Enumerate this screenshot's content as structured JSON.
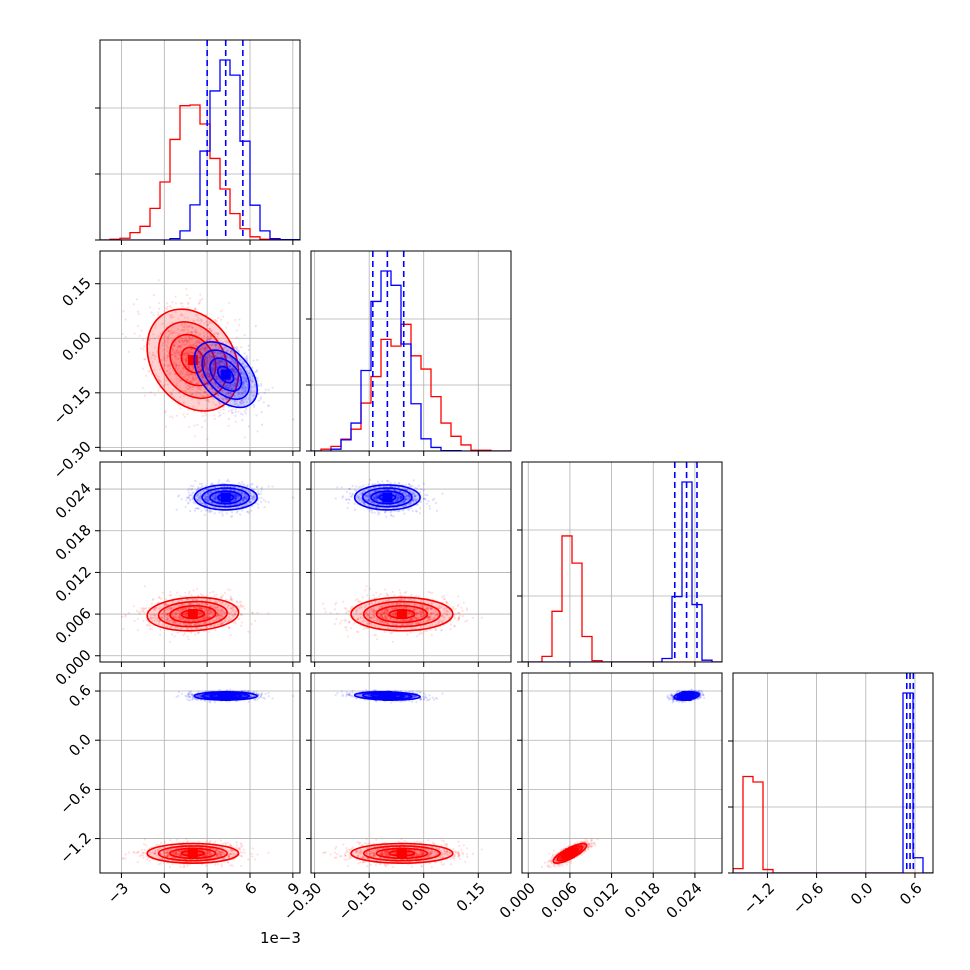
{
  "chart_data": {
    "type": "scatter",
    "subtype": "corner",
    "colors": {
      "series_a": "#ff0000",
      "series_b": "#0000ff",
      "grid": "#b0b0b0"
    },
    "parameters": [
      {
        "range": [
          -4.5,
          9.5
        ],
        "ticks": [
          -3,
          0,
          3,
          6,
          9
        ],
        "tick_labels": [
          "−3",
          "0",
          "3",
          "6",
          "9"
        ],
        "offset_label": "1e−3"
      },
      {
        "range": [
          -0.31,
          0.24
        ],
        "ticks": [
          -0.3,
          -0.15,
          0.0,
          0.15
        ],
        "tick_labels": [
          "−0.30",
          "−0.15",
          "0.00",
          "0.15"
        ]
      },
      {
        "range": [
          -0.0009,
          0.0279
        ],
        "ticks": [
          0.0,
          0.006,
          0.012,
          0.018,
          0.024
        ],
        "tick_labels": [
          "0.000",
          "0.006",
          "0.012",
          "0.018",
          "0.024"
        ]
      },
      {
        "range": [
          -1.62,
          0.82
        ],
        "ticks": [
          -1.2,
          -0.6,
          0.0,
          0.6
        ],
        "tick_labels": [
          "−1.2",
          "−0.6",
          "0.0",
          "0.6"
        ]
      }
    ],
    "series": [
      {
        "color": "#ff0000",
        "mean": [
          2.0,
          -0.06,
          0.006,
          -1.38
        ],
        "sd": [
          1.6,
          0.07,
          0.0012,
          0.06
        ],
        "corr": [
          [
            0,
            1,
            -0.25
          ],
          [
            0,
            2,
            0.1
          ],
          [
            2,
            3,
            0.8
          ]
        ]
      },
      {
        "color": "#0000ff",
        "mean": [
          4.3,
          -0.1,
          0.0228,
          0.54
        ],
        "sd": [
          1.1,
          0.045,
          0.0009,
          0.025
        ],
        "corr": [
          [
            0,
            1,
            -0.45
          ],
          [
            1,
            3,
            -0.2
          ],
          [
            2,
            3,
            0.3
          ]
        ]
      }
    ],
    "hist_bin_counts": [
      20,
      20,
      20,
      20
    ],
    "quantile_lines": {
      "color": "#0000ff",
      "values": [
        [
          3.0,
          4.3,
          5.5
        ],
        [
          -0.14,
          -0.1,
          -0.055
        ],
        [
          0.0211,
          0.0228,
          0.0243
        ],
        [
          0.5,
          0.54,
          0.58
        ]
      ]
    }
  }
}
